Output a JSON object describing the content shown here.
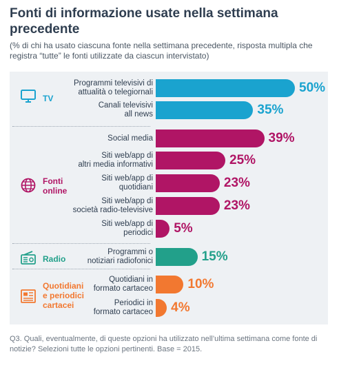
{
  "title": "Fonti di informazione usate nella settimana precedente",
  "subtitle": "(% di chi ha usato ciascuna fonte nella settimana precedente, risposta multipla che registra “tutte” le fonti utilizzate da ciascun intervistato)",
  "footer": "Q3. Quali, eventualmente, di queste opzioni ha utilizzato nell’ultima settimana come fonte di notizie? Selezioni tutte le opzioni pertinenti. Base = 2015.",
  "colors": {
    "tv": "#1aa3cf",
    "online": "#b01565",
    "radio": "#22a08a",
    "print": "#f27830"
  },
  "groups": [
    {
      "id": "tv",
      "label": "TV",
      "icon": "tv-icon"
    },
    {
      "id": "online",
      "label": "Fonti\nonline",
      "icon": "globe-icon"
    },
    {
      "id": "radio",
      "label": "Radio",
      "icon": "radio-icon"
    },
    {
      "id": "print",
      "label": "Quotidiani\ne periodici\ncartacei",
      "icon": "newspaper-icon"
    }
  ],
  "chart_data": {
    "type": "bar",
    "orientation": "horizontal",
    "unit": "%",
    "xlim": [
      0,
      50
    ],
    "categories": [
      "Programmi televisivi di\nattualità o telegiornali",
      "Canali televisivi\nall news",
      "Social media",
      "Siti web/app di\naltri media informativi",
      "Siti web/app di\nquotidiani",
      "Siti web/app di\nsocietà radio-televisive",
      "Siti web/app di\nperiodici",
      "Programmi o\nnotiziari radiofonici",
      "Quotidiani in\nformato cartaceo",
      "Periodici in\nformato cartaceo"
    ],
    "values": [
      50,
      35,
      39,
      25,
      23,
      23,
      5,
      15,
      10,
      4
    ],
    "value_labels": [
      "50%",
      "35%",
      "39%",
      "25%",
      "23%",
      "23%",
      "5%",
      "15%",
      "10%",
      "4%"
    ],
    "category_groups": [
      "tv",
      "tv",
      "online",
      "online",
      "online",
      "online",
      "online",
      "radio",
      "print",
      "print"
    ]
  }
}
